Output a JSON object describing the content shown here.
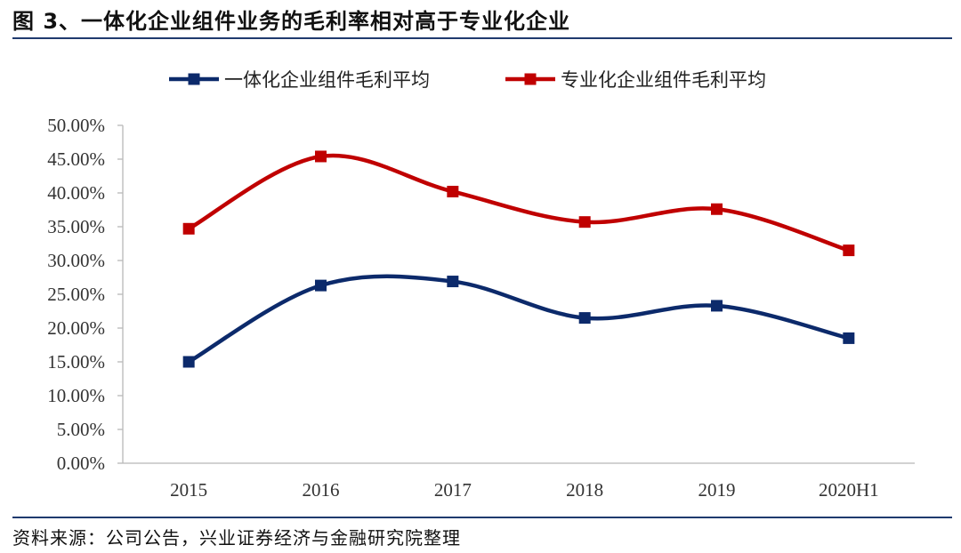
{
  "header": {
    "figure_title": "图 3、一体化企业组件业务的毛利率相对高于专业化企业"
  },
  "footer": {
    "source_text": "资料来源：公司公告，兴业证券经济与金融研究院整理"
  },
  "colors": {
    "series_integrated": "#0c2a6b",
    "series_specialized": "#c00000",
    "rule": "#1f3a6e",
    "axis": "#b8b8b8"
  },
  "chart_data": {
    "type": "line",
    "categories": [
      "2015",
      "2016",
      "2017",
      "2018",
      "2019",
      "2020H1"
    ],
    "series": [
      {
        "name": "一体化企业组件毛利平均",
        "values": [
          15.0,
          26.3,
          26.9,
          21.5,
          23.3,
          18.5
        ]
      },
      {
        "name": "专业化企业组件毛利平均",
        "values": [
          34.7,
          45.4,
          40.2,
          35.7,
          37.6,
          31.5
        ]
      }
    ],
    "y_tick_labels": [
      "0.00%",
      "5.00%",
      "10.00%",
      "15.00%",
      "20.00%",
      "25.00%",
      "30.00%",
      "35.00%",
      "40.00%",
      "45.00%",
      "50.00%"
    ],
    "ylim": [
      0,
      50
    ],
    "y_unit": "%",
    "grid": false,
    "smooth": true,
    "marker": "square",
    "legend_position": "top"
  }
}
